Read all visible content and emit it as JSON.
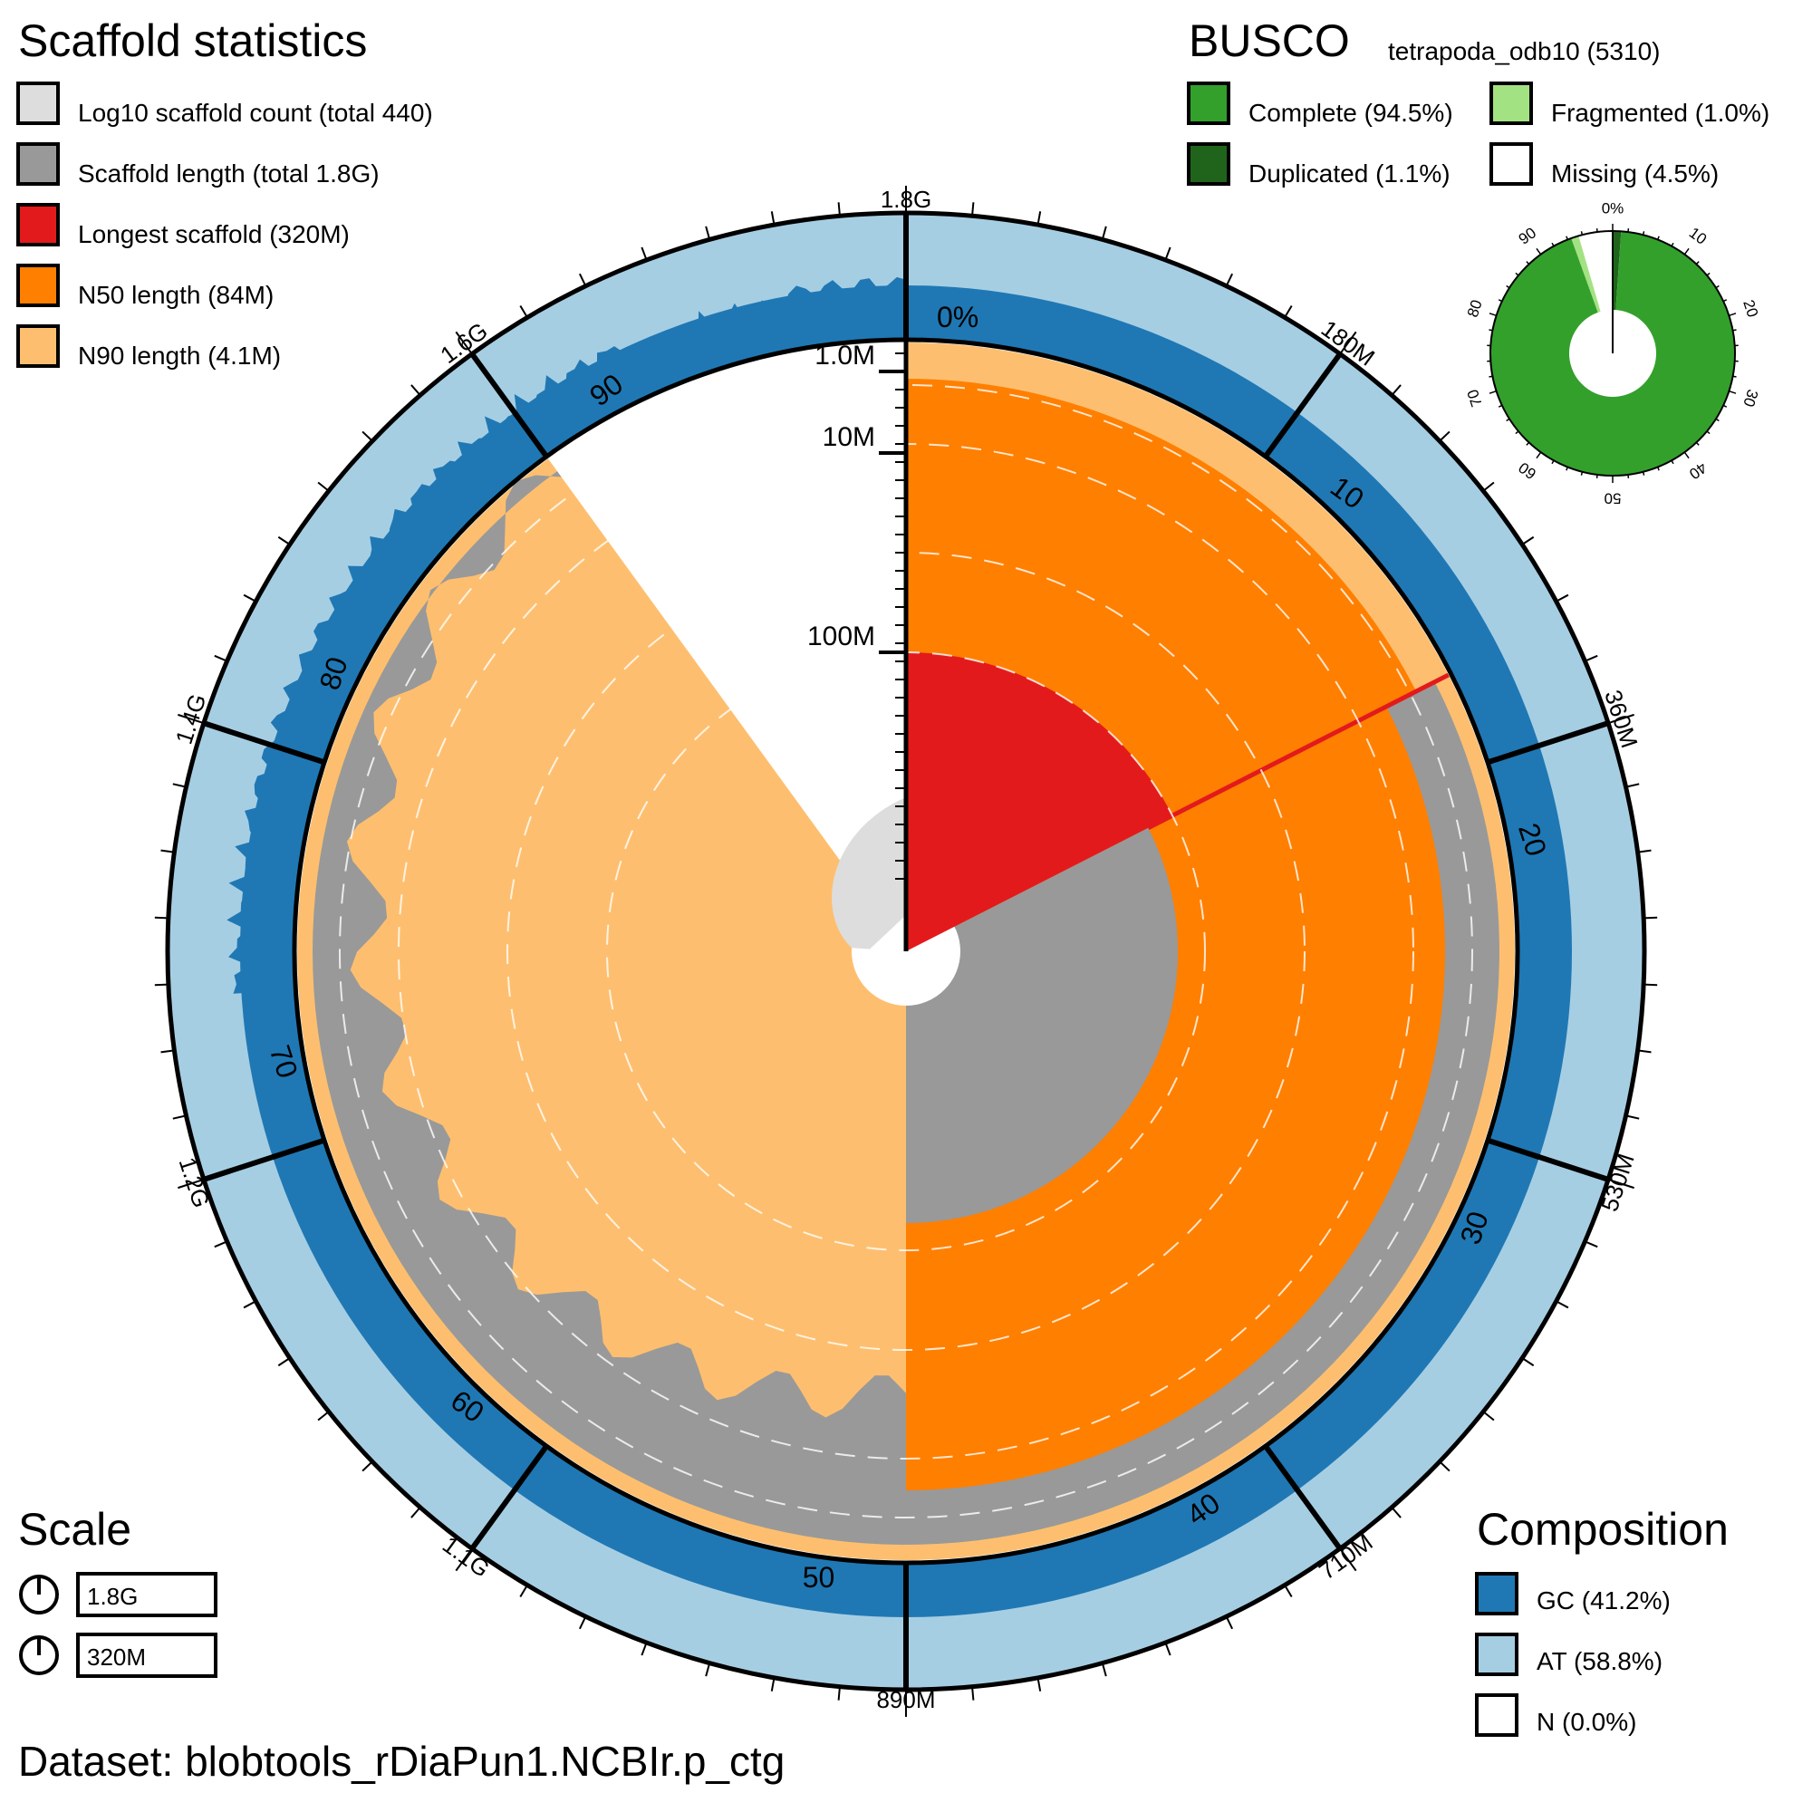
{
  "dataset": "Dataset: blobtools_rDiaPun1.NCBIr.p_ctg",
  "legend": {
    "title": "Scaffold statistics",
    "items": [
      {
        "label": "Log10 scaffold count (total 440)",
        "color": "#dddddd"
      },
      {
        "label": "Scaffold length (total 1.8G)",
        "color": "#999999"
      },
      {
        "label": "Longest scaffold (320M)",
        "color": "#e31a1c"
      },
      {
        "label": "N50 length (84M)",
        "color": "#ff7f00"
      },
      {
        "label": "N90 length (4.1M)",
        "color": "#fdbf6f"
      }
    ]
  },
  "busco": {
    "title": "BUSCO",
    "lineage": "tetrapoda_odb10 (5310)",
    "items": [
      {
        "label": "Complete (94.5%)",
        "color": "#33a02c"
      },
      {
        "label": "Fragmented (1.0%)",
        "color": "#a3e283"
      },
      {
        "label": "Duplicated (1.1%)",
        "color": "#20641c"
      },
      {
        "label": "Missing (4.5%)",
        "color": "#ffffff"
      }
    ]
  },
  "scale": {
    "title": "Scale",
    "items": [
      "1.8G",
      "320M"
    ]
  },
  "composition": {
    "title": "Composition",
    "items": [
      {
        "label": "GC (41.2%)",
        "color": "#1f78b4"
      },
      {
        "label": "AT (58.8%)",
        "color": "#a6cee3"
      },
      {
        "label": "N (0.0%)",
        "color": "#ffffff"
      }
    ]
  },
  "chart_data": {
    "type": "snail",
    "total_length": "1.8G",
    "scaffold_count": 440,
    "longest_scaffold": "320M",
    "n50": "84M",
    "n90": "4.1M",
    "longest_pct": 17.5,
    "n50_pct": 50,
    "n90_pct": 90,
    "gc_percent": 41.2,
    "at_percent": 58.8,
    "n_percent": 0.0,
    "outer_ticks": [
      "1.8G",
      "180M",
      "360M",
      "530M",
      "710M",
      "890M",
      "1.1G",
      "1.2G",
      "1.4G",
      "1.6G"
    ],
    "percent_ticks": [
      "0%",
      "10",
      "20",
      "30",
      "40",
      "50",
      "60",
      "70",
      "80",
      "90"
    ],
    "radial_scale": [
      "1.0M",
      "10M",
      "100M"
    ],
    "busco_ticks": [
      "0%",
      "10",
      "20",
      "30",
      "40",
      "50",
      "60",
      "70",
      "80",
      "90"
    ],
    "busco_pct": {
      "complete": 94.5,
      "duplicated": 1.1,
      "fragmented": 1.0,
      "missing": 4.5
    }
  }
}
